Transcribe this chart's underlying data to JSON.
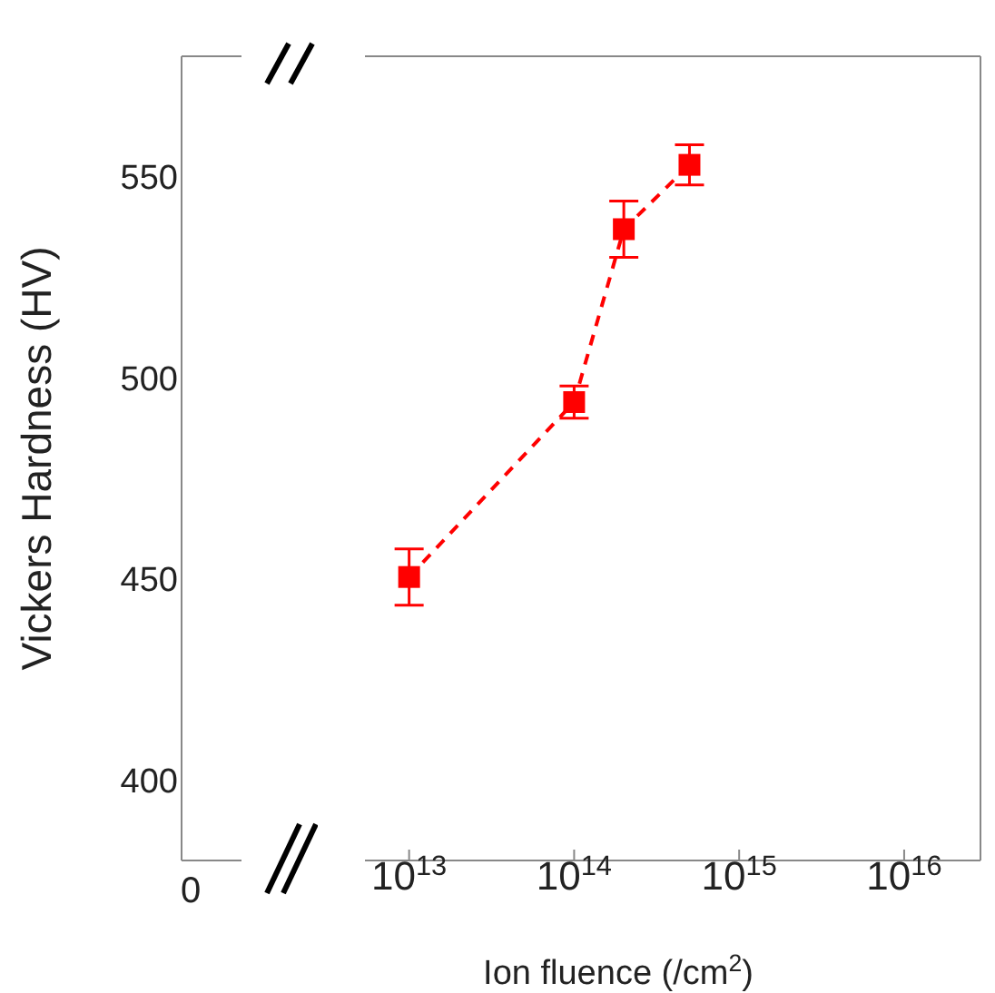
{
  "chart_data": {
    "type": "line",
    "ylabel": "Vickers Hardness (HV)",
    "xlabel": "Ion fluence (/cm$^{2}$)",
    "annotations": [
      "0"
    ],
    "log": "x",
    "xlim": [
      5400000000000.0,
      2.9e+16
    ],
    "xticks": [
      {
        "value": 10000000000000.0,
        "label": "10$^{13}$"
      },
      {
        "value": 100000000000000.0,
        "label": "10$^{14}$"
      },
      {
        "value": 1000000000000000.0,
        "label": "10$^{15}$"
      },
      {
        "value": 1e+16,
        "label": "10$^{16}$"
      }
    ],
    "ylim": [
      380,
      580
    ],
    "yticks": [
      400,
      450,
      500,
      550
    ],
    "marker": "square",
    "line_style": "dashed",
    "x": [
      10000000000000.0,
      100000000000000.0,
      200000000000000.0,
      500000000000000.0
    ],
    "series": [
      {
        "color": "#ff0000",
        "values": [
          450.5,
          494,
          537,
          553
        ],
        "errors": [
          7,
          4,
          7,
          5
        ]
      }
    ]
  }
}
